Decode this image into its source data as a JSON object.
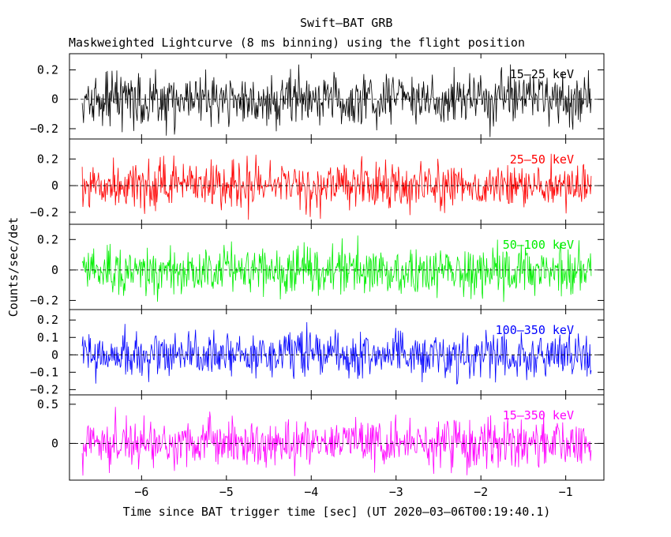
{
  "title": "Swift–BAT GRB",
  "subtitle": "Maskweighted Lightcurve (8 ms binning) using the flight position",
  "chart_data": {
    "type": "line",
    "xlabel": "Time since BAT trigger time [sec] (UT 2020–03–06T00:19:40.1)",
    "ylabel": "Counts/sec/det",
    "xlim": [
      -6.85,
      -0.55
    ],
    "x_range": [
      -6.7,
      -0.7
    ],
    "bin_width": 0.008,
    "xticks": [
      -6,
      -5,
      -4,
      -3,
      -2,
      -1
    ],
    "xtick_labels": [
      "−6",
      "−5",
      "−4",
      "−3",
      "−2",
      "−1"
    ],
    "zero_line": "dashed",
    "panels": [
      {
        "name": "15–25 keV",
        "color": "#000000",
        "ylim": [
          -0.27,
          0.31
        ],
        "ticks": [
          -0.2,
          0,
          0.2
        ],
        "tick_labels": [
          "−0.2",
          "0",
          "0.2"
        ],
        "amplitude": 0.09,
        "seed": 11
      },
      {
        "name": "25–50 keV",
        "color": "#ff0000",
        "ylim": [
          -0.29,
          0.35
        ],
        "ticks": [
          -0.2,
          0,
          0.2
        ],
        "tick_labels": [
          "−0.2",
          "0",
          "0.2"
        ],
        "amplitude": 0.09,
        "seed": 23
      },
      {
        "name": "50–100 keV",
        "color": "#00ee00",
        "ylim": [
          -0.26,
          0.3
        ],
        "ticks": [
          -0.2,
          0,
          0.2
        ],
        "tick_labels": [
          "−0.2",
          "0",
          "0.2"
        ],
        "amplitude": 0.08,
        "seed": 37
      },
      {
        "name": "100–350 keV",
        "color": "#0000ff",
        "ylim": [
          -0.23,
          0.26
        ],
        "ticks": [
          -0.2,
          -0.1,
          0,
          0.1,
          0.2
        ],
        "tick_labels": [
          "−0.2",
          "−0.1",
          "0",
          "0.1",
          "0.2"
        ],
        "amplitude": 0.065,
        "seed": 49
      },
      {
        "name": "15–350 keV",
        "color": "#ff00ff",
        "ylim": [
          -0.47,
          0.62
        ],
        "ticks": [
          0,
          0.5
        ],
        "tick_labels": [
          "0",
          "0.5"
        ],
        "amplitude": 0.16,
        "seed": 61
      }
    ]
  }
}
